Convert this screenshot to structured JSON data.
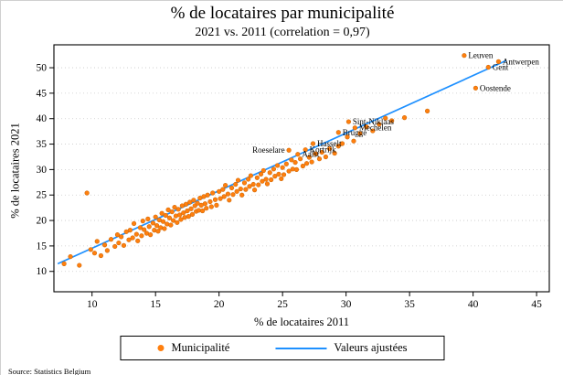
{
  "page": {
    "source": "Source: Statistics Belgium"
  },
  "chart_data": {
    "type": "scatter",
    "title": "% de locataires par municipalité",
    "subtitle": "2021 vs. 2011 (correlation = 0,97)",
    "xlabel": "% de locataires 2011",
    "ylabel": "% de locataires 2021",
    "xlim": [
      7,
      46
    ],
    "ylim": [
      6,
      54.5
    ],
    "xticks": [
      10,
      15,
      20,
      25,
      30,
      35,
      40,
      45
    ],
    "yticks": [
      10,
      15,
      20,
      25,
      30,
      35,
      40,
      45,
      50
    ],
    "grid": "horizontal-dotted",
    "colors": {
      "points": "#ff7f0e",
      "line": "#1e90ff"
    },
    "legend": {
      "position": "bottom",
      "entries": [
        {
          "label": "Municipalité",
          "marker": "dot",
          "color": "#ff7f0e"
        },
        {
          "label": "Valeurs ajustées",
          "marker": "line",
          "color": "#1e90ff"
        }
      ]
    },
    "fit_line": {
      "x": [
        7.3,
        42.6
      ],
      "y": [
        11.5,
        51.4
      ]
    },
    "labeled_points": [
      {
        "name": "Leuven",
        "x": 39.3,
        "y": 52.4,
        "anchor": "start"
      },
      {
        "name": "Antwerpen",
        "x": 42.0,
        "y": 51.2,
        "anchor": "start"
      },
      {
        "name": "Gent",
        "x": 41.2,
        "y": 50.1,
        "anchor": "start"
      },
      {
        "name": "Oostende",
        "x": 40.2,
        "y": 46.0,
        "anchor": "start"
      },
      {
        "name": "Sint-Niklaas",
        "x": 30.2,
        "y": 39.4,
        "anchor": "start"
      },
      {
        "name": "Mechelen",
        "x": 30.7,
        "y": 38.2,
        "anchor": "start"
      },
      {
        "name": "Brugge",
        "x": 29.4,
        "y": 37.3,
        "anchor": "start"
      },
      {
        "name": "Hasselt",
        "x": 27.4,
        "y": 35.1,
        "anchor": "start"
      },
      {
        "name": "Roeselare",
        "x": 25.5,
        "y": 33.8,
        "anchor": "end"
      },
      {
        "name": "Kortrijk",
        "x": 26.8,
        "y": 33.9,
        "anchor": "start"
      },
      {
        "name": "Aalst",
        "x": 26.2,
        "y": 33.0,
        "anchor": "start"
      }
    ],
    "points": [
      [
        7.8,
        11.5
      ],
      [
        8.3,
        12.9
      ],
      [
        9.0,
        11.2
      ],
      [
        9.6,
        25.4
      ],
      [
        9.9,
        14.3
      ],
      [
        10.2,
        13.6
      ],
      [
        10.4,
        15.9
      ],
      [
        10.7,
        13.1
      ],
      [
        11.0,
        15.2
      ],
      [
        11.2,
        14.1
      ],
      [
        11.5,
        16.3
      ],
      [
        11.8,
        14.9
      ],
      [
        12.0,
        17.2
      ],
      [
        12.1,
        15.6
      ],
      [
        12.3,
        16.8
      ],
      [
        12.5,
        15.1
      ],
      [
        12.7,
        17.8
      ],
      [
        12.9,
        16.2
      ],
      [
        13.0,
        18.1
      ],
      [
        13.2,
        16.6
      ],
      [
        13.3,
        19.4
      ],
      [
        13.5,
        17.3
      ],
      [
        13.6,
        16.0
      ],
      [
        13.8,
        18.6
      ],
      [
        13.9,
        17.0
      ],
      [
        14.0,
        19.9
      ],
      [
        14.1,
        18.2
      ],
      [
        14.3,
        17.5
      ],
      [
        14.4,
        20.3
      ],
      [
        14.5,
        18.8
      ],
      [
        14.6,
        17.2
      ],
      [
        14.8,
        19.5
      ],
      [
        14.9,
        18.1
      ],
      [
        15.0,
        20.7
      ],
      [
        15.1,
        19.0
      ],
      [
        15.2,
        17.9
      ],
      [
        15.3,
        20.1
      ],
      [
        15.4,
        18.6
      ],
      [
        15.5,
        21.4
      ],
      [
        15.6,
        19.8
      ],
      [
        15.7,
        18.4
      ],
      [
        15.8,
        21.0
      ],
      [
        15.9,
        19.3
      ],
      [
        16.0,
        22.1
      ],
      [
        16.1,
        20.5
      ],
      [
        16.2,
        19.1
      ],
      [
        16.3,
        21.7
      ],
      [
        16.4,
        20.0
      ],
      [
        16.5,
        22.6
      ],
      [
        16.6,
        20.9
      ],
      [
        16.7,
        19.6
      ],
      [
        16.8,
        22.2
      ],
      [
        16.9,
        21.1
      ],
      [
        17.0,
        20.2
      ],
      [
        17.1,
        22.9
      ],
      [
        17.2,
        21.5
      ],
      [
        17.3,
        20.6
      ],
      [
        17.4,
        23.2
      ],
      [
        17.5,
        21.9
      ],
      [
        17.6,
        20.8
      ],
      [
        17.7,
        23.6
      ],
      [
        17.8,
        22.3
      ],
      [
        17.9,
        21.2
      ],
      [
        18.0,
        24.0
      ],
      [
        18.1,
        22.9
      ],
      [
        18.2,
        21.8
      ],
      [
        18.3,
        23.4
      ],
      [
        18.4,
        22.0
      ],
      [
        18.5,
        24.4
      ],
      [
        18.6,
        23.0
      ],
      [
        18.7,
        21.9
      ],
      [
        18.8,
        24.7
      ],
      [
        18.9,
        23.3
      ],
      [
        19.0,
        22.4
      ],
      [
        19.1,
        25.0
      ],
      [
        19.3,
        23.7
      ],
      [
        19.4,
        22.7
      ],
      [
        19.5,
        25.4
      ],
      [
        19.7,
        24.1
      ],
      [
        19.8,
        23.0
      ],
      [
        20.0,
        25.7
      ],
      [
        20.1,
        24.3
      ],
      [
        20.3,
        26.1
      ],
      [
        20.4,
        24.7
      ],
      [
        20.5,
        26.9
      ],
      [
        20.7,
        25.2
      ],
      [
        20.8,
        24.0
      ],
      [
        21.0,
        26.4
      ],
      [
        21.1,
        25.1
      ],
      [
        21.3,
        27.1
      ],
      [
        21.4,
        25.7
      ],
      [
        21.5,
        27.9
      ],
      [
        21.7,
        26.2
      ],
      [
        21.8,
        25.0
      ],
      [
        22.0,
        27.4
      ],
      [
        22.1,
        26.1
      ],
      [
        22.3,
        28.1
      ],
      [
        22.4,
        26.7
      ],
      [
        22.5,
        28.8
      ],
      [
        22.7,
        27.1
      ],
      [
        22.8,
        26.0
      ],
      [
        23.0,
        28.4
      ],
      [
        23.1,
        27.0
      ],
      [
        23.3,
        29.1
      ],
      [
        23.4,
        27.7
      ],
      [
        23.5,
        29.8
      ],
      [
        23.7,
        28.1
      ],
      [
        23.8,
        27.2
      ],
      [
        24.0,
        29.4
      ],
      [
        24.1,
        28.0
      ],
      [
        24.3,
        30.1
      ],
      [
        24.4,
        28.7
      ],
      [
        24.6,
        30.8
      ],
      [
        24.7,
        29.1
      ],
      [
        24.9,
        28.2
      ],
      [
        25.0,
        30.4
      ],
      [
        25.1,
        29.0
      ],
      [
        25.3,
        31.1
      ],
      [
        25.5,
        29.7
      ],
      [
        25.7,
        31.9
      ],
      [
        25.8,
        30.1
      ],
      [
        26.0,
        31.4
      ],
      [
        26.1,
        30.0
      ],
      [
        26.4,
        32.1
      ],
      [
        26.6,
        30.7
      ],
      [
        26.9,
        31.2
      ],
      [
        27.1,
        32.4
      ],
      [
        27.3,
        31.5
      ],
      [
        27.6,
        33.1
      ],
      [
        27.9,
        32.1
      ],
      [
        28.1,
        33.4
      ],
      [
        28.4,
        32.5
      ],
      [
        28.7,
        34.1
      ],
      [
        29.1,
        33.2
      ],
      [
        29.4,
        34.6
      ],
      [
        29.7,
        35.1
      ],
      [
        30.1,
        36.4
      ],
      [
        30.6,
        35.6
      ],
      [
        31.1,
        37.1
      ],
      [
        31.6,
        38.4
      ],
      [
        32.1,
        37.6
      ],
      [
        32.6,
        38.9
      ],
      [
        33.1,
        40.1
      ],
      [
        33.6,
        39.6
      ],
      [
        34.6,
        40.2
      ],
      [
        36.4,
        41.5
      ]
    ]
  }
}
